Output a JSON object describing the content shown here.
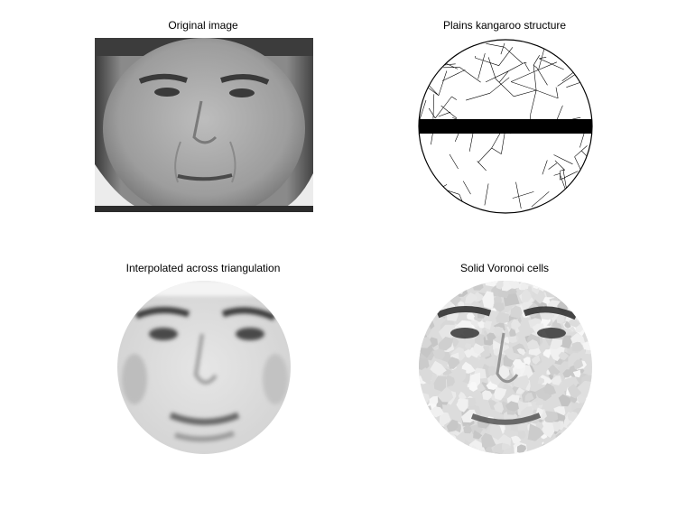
{
  "figure": {
    "panels": [
      {
        "title": "Original image",
        "content": "grayscale face photograph",
        "icon": "face-photo"
      },
      {
        "title": "Plains kangaroo structure",
        "content": "triangulated mesh inside a circular region",
        "icon": "mesh"
      },
      {
        "title": "Interpolated across triangulation",
        "content": "face reconstructed by interpolation inside a circle",
        "icon": "interpolated-face"
      },
      {
        "title": "Solid Voronoi cells",
        "content": "face rendered with solid Voronoi cells inside a circle",
        "icon": "voronoi-face"
      }
    ]
  }
}
